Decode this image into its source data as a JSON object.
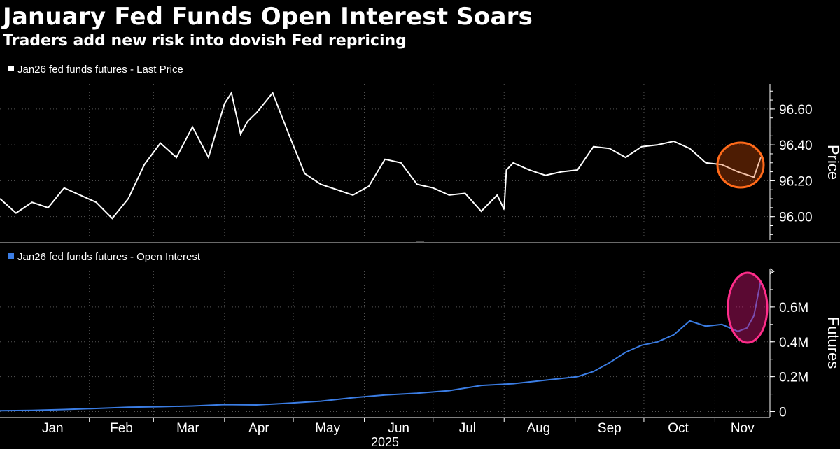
{
  "title": "January Fed Funds Open Interest Soars",
  "subtitle": "Traders add new risk into dovish Fed repricing",
  "colors": {
    "background": "#000000",
    "price_line": "#ffffff",
    "oi_line": "#3b7de4",
    "price_highlight": "#ff6a1a",
    "oi_highlight": "#ff2d8a",
    "grid": "#555555"
  },
  "chart_data": [
    {
      "type": "line",
      "legend": "Jan26 fed funds futures - Last Price",
      "ylabel": "Price",
      "ylim": [
        95.87,
        96.74
      ],
      "yticks": [
        "96.00",
        "96.20",
        "96.40",
        "96.60"
      ],
      "ytick_values": [
        96.0,
        96.2,
        96.4,
        96.6
      ],
      "grid": true,
      "legend_position": "top-left",
      "series": [
        {
          "x": [
            "2024-12-23",
            "2024-12-30",
            "2025-01-06",
            "2025-01-13",
            "2025-01-20",
            "2025-01-27",
            "2025-02-03",
            "2025-02-10",
            "2025-02-17",
            "2025-02-24",
            "2025-03-03",
            "2025-03-10",
            "2025-03-17",
            "2025-03-24",
            "2025-03-31",
            "2025-04-03",
            "2025-04-07",
            "2025-04-10",
            "2025-04-14",
            "2025-04-21",
            "2025-04-28",
            "2025-05-05",
            "2025-05-12",
            "2025-05-19",
            "2025-05-26",
            "2025-06-02",
            "2025-06-09",
            "2025-06-16",
            "2025-06-23",
            "2025-06-30",
            "2025-07-07",
            "2025-07-14",
            "2025-07-21",
            "2025-07-28",
            "2025-07-31",
            "2025-08-01",
            "2025-08-04",
            "2025-08-11",
            "2025-08-18",
            "2025-08-25",
            "2025-09-01",
            "2025-09-08",
            "2025-09-15",
            "2025-09-22",
            "2025-09-29",
            "2025-10-06",
            "2025-10-13",
            "2025-10-20",
            "2025-10-27",
            "2025-11-03",
            "2025-11-10",
            "2025-11-17",
            "2025-11-20"
          ],
          "values": [
            96.1,
            96.02,
            96.08,
            96.05,
            96.16,
            96.12,
            96.08,
            95.99,
            96.1,
            96.29,
            96.41,
            96.33,
            96.5,
            96.33,
            96.63,
            96.69,
            96.46,
            96.53,
            96.58,
            96.69,
            96.46,
            96.24,
            96.18,
            96.15,
            96.12,
            96.17,
            96.32,
            96.3,
            96.18,
            96.16,
            96.12,
            96.13,
            96.03,
            96.12,
            96.04,
            96.26,
            96.3,
            96.26,
            96.23,
            96.25,
            96.26,
            96.39,
            96.38,
            96.33,
            96.39,
            96.4,
            96.42,
            96.38,
            96.3,
            96.29,
            96.25,
            96.22,
            96.33
          ]
        }
      ]
    },
    {
      "type": "line",
      "legend": "Jan26 fed funds futures - Open Interest",
      "ylabel": "Futures",
      "ylim": [
        -0.03,
        0.82
      ],
      "yticks": [
        "0",
        "0.2M",
        "0.4M",
        "0.6M"
      ],
      "ytick_values": [
        0,
        0.2,
        0.4,
        0.6
      ],
      "grid": true,
      "legend_position": "top-left",
      "xticks": [
        "Jan",
        "Feb",
        "Mar",
        "Apr",
        "May",
        "Jun",
        "Jul",
        "Aug",
        "Sep",
        "Oct",
        "Nov"
      ],
      "xlabel": "2025",
      "series": [
        {
          "x": [
            "2024-12-23",
            "2025-01-06",
            "2025-01-20",
            "2025-02-03",
            "2025-02-17",
            "2025-03-03",
            "2025-03-17",
            "2025-03-31",
            "2025-04-14",
            "2025-04-28",
            "2025-05-12",
            "2025-05-26",
            "2025-06-09",
            "2025-06-23",
            "2025-07-07",
            "2025-07-21",
            "2025-08-04",
            "2025-08-18",
            "2025-09-01",
            "2025-09-08",
            "2025-09-15",
            "2025-09-22",
            "2025-09-29",
            "2025-10-06",
            "2025-10-13",
            "2025-10-20",
            "2025-10-27",
            "2025-11-03",
            "2025-11-10",
            "2025-11-14",
            "2025-11-17",
            "2025-11-20"
          ],
          "values": [
            0.005,
            0.007,
            0.012,
            0.018,
            0.025,
            0.028,
            0.032,
            0.04,
            0.038,
            0.048,
            0.06,
            0.08,
            0.095,
            0.105,
            0.12,
            0.15,
            0.16,
            0.18,
            0.2,
            0.23,
            0.28,
            0.34,
            0.38,
            0.4,
            0.44,
            0.52,
            0.49,
            0.5,
            0.46,
            0.48,
            0.55,
            0.75
          ]
        }
      ]
    }
  ]
}
